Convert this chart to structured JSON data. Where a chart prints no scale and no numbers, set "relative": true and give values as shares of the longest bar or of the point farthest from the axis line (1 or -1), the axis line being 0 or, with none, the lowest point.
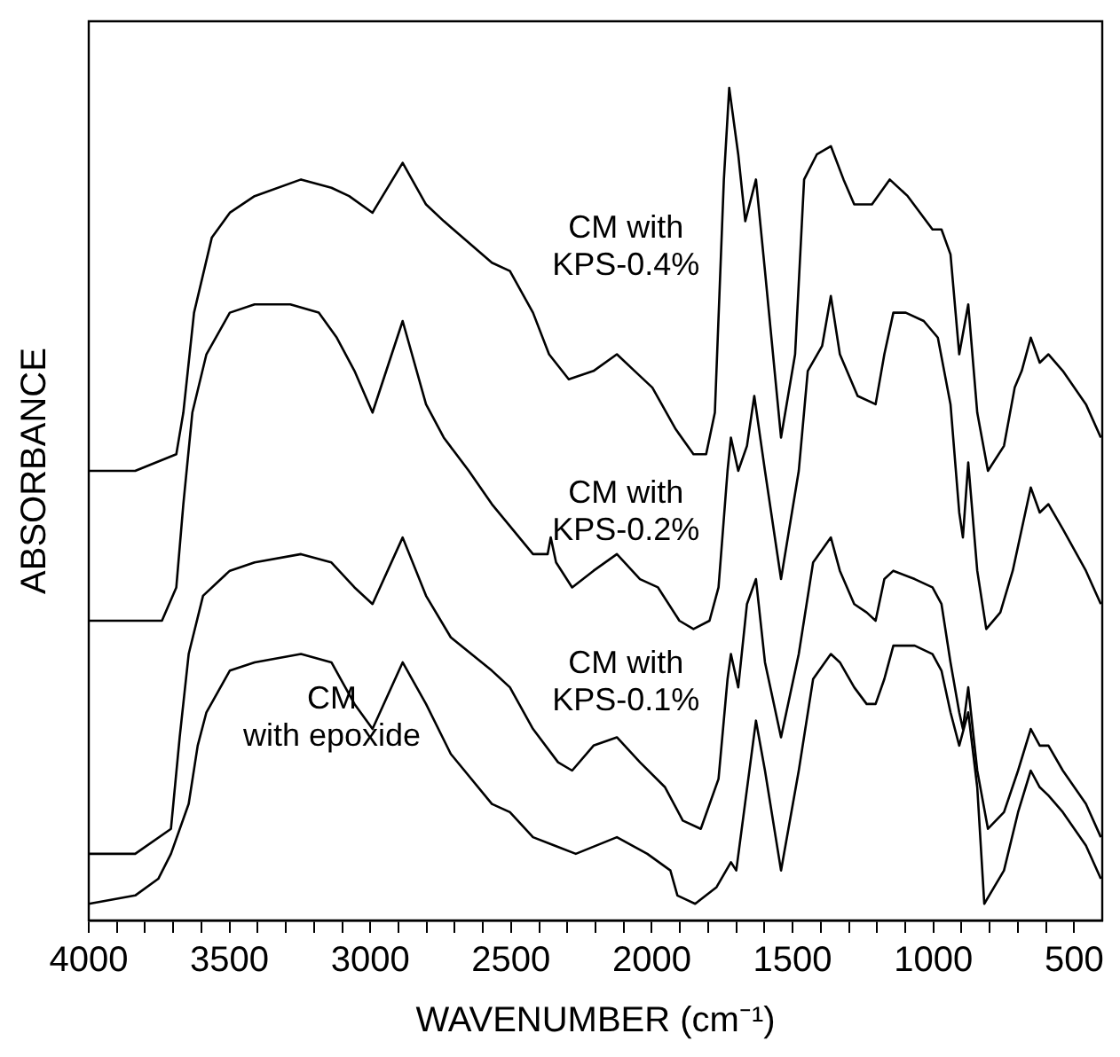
{
  "chart_data": {
    "type": "line",
    "relative": true,
    "marker": "none",
    "xlabel": "WAVENUMBER (cm⁻¹)",
    "ylabel": "ABSORBANCE",
    "xlim": [
      4000,
      400
    ],
    "xticks": [
      4000,
      {
        "value": 3900,
        "label": null
      },
      {
        "value": 3800,
        "label": null
      },
      {
        "value": 3700,
        "label": null
      },
      {
        "value": 3600,
        "label": null
      },
      3500,
      {
        "value": 3400,
        "label": null
      },
      {
        "value": 3300,
        "label": null
      },
      {
        "value": 3200,
        "label": null
      },
      {
        "value": 3100,
        "label": null
      },
      3000,
      {
        "value": 2900,
        "label": null
      },
      {
        "value": 2800,
        "label": null
      },
      {
        "value": 2700,
        "label": null
      },
      {
        "value": 2600,
        "label": null
      },
      2500,
      {
        "value": 2400,
        "label": null
      },
      {
        "value": 2300,
        "label": null
      },
      {
        "value": 2200,
        "label": null
      },
      {
        "value": 2100,
        "label": null
      },
      2000,
      {
        "value": 1900,
        "label": null
      },
      {
        "value": 1800,
        "label": null
      },
      {
        "value": 1700,
        "label": null
      },
      {
        "value": 1600,
        "label": null
      },
      1500,
      {
        "value": 1400,
        "label": null
      },
      {
        "value": 1300,
        "label": null
      },
      {
        "value": 1200,
        "label": null
      },
      {
        "value": 1100,
        "label": null
      },
      1000,
      {
        "value": 900,
        "label": null
      },
      {
        "value": 800,
        "label": null
      },
      {
        "value": 700,
        "label": null
      },
      {
        "value": 600,
        "label": null
      },
      500
    ],
    "series": [
      {
        "name": "CM with\nKPS-0.4%",
        "color": "#000000",
        "x": [
          4000,
          3835,
          3689,
          3664,
          3626,
          3563,
          3499,
          3411,
          3246,
          3138,
          3075,
          2992,
          2885,
          2802,
          2739,
          2568,
          2504,
          2422,
          2365,
          2295,
          2207,
          2124,
          2061,
          1998,
          1915,
          1852,
          1807,
          1776,
          1744,
          1725,
          1693,
          1668,
          1630,
          1598,
          1541,
          1491,
          1459,
          1414,
          1364,
          1319,
          1281,
          1218,
          1155,
          1091,
          1003,
          971,
          939,
          908,
          876,
          844,
          806,
          749,
          711,
          686,
          654,
          622,
          591,
          540,
          458,
          405
        ],
        "values": [
          0.54,
          0.54,
          0.56,
          0.61,
          0.73,
          0.82,
          0.85,
          0.87,
          0.89,
          0.88,
          0.87,
          0.85,
          0.91,
          0.86,
          0.84,
          0.79,
          0.78,
          0.73,
          0.68,
          0.65,
          0.66,
          0.68,
          0.66,
          0.64,
          0.59,
          0.56,
          0.56,
          0.61,
          0.89,
          1.0,
          0.92,
          0.84,
          0.89,
          0.78,
          0.58,
          0.68,
          0.89,
          0.92,
          0.93,
          0.89,
          0.86,
          0.86,
          0.89,
          0.87,
          0.83,
          0.83,
          0.8,
          0.68,
          0.74,
          0.61,
          0.54,
          0.57,
          0.64,
          0.66,
          0.7,
          0.67,
          0.68,
          0.66,
          0.62,
          0.58
        ]
      },
      {
        "name": "CM with\nKPS-0.2%",
        "color": "#000000",
        "x": [
          4000,
          3740,
          3689,
          3664,
          3632,
          3582,
          3499,
          3411,
          3284,
          3183,
          3119,
          3056,
          2992,
          2885,
          2802,
          2739,
          2650,
          2568,
          2422,
          2370,
          2359,
          2340,
          2283,
          2207,
          2124,
          2042,
          1978,
          1902,
          1852,
          1795,
          1763,
          1731,
          1719,
          1693,
          1662,
          1636,
          1598,
          1541,
          1478,
          1446,
          1395,
          1364,
          1332,
          1269,
          1205,
          1174,
          1142,
          1098,
          1034,
          984,
          939,
          908,
          895,
          876,
          844,
          812,
          762,
          718,
          686,
          654,
          622,
          591,
          540,
          458,
          405
        ],
        "values": [
          0.36,
          0.36,
          0.4,
          0.5,
          0.61,
          0.68,
          0.73,
          0.74,
          0.74,
          0.73,
          0.7,
          0.66,
          0.61,
          0.72,
          0.62,
          0.58,
          0.54,
          0.5,
          0.44,
          0.44,
          0.46,
          0.43,
          0.4,
          0.42,
          0.44,
          0.41,
          0.4,
          0.36,
          0.35,
          0.36,
          0.4,
          0.54,
          0.58,
          0.54,
          0.57,
          0.63,
          0.54,
          0.41,
          0.54,
          0.66,
          0.69,
          0.75,
          0.68,
          0.63,
          0.62,
          0.68,
          0.73,
          0.73,
          0.72,
          0.7,
          0.62,
          0.49,
          0.46,
          0.55,
          0.42,
          0.35,
          0.37,
          0.42,
          0.47,
          0.52,
          0.49,
          0.5,
          0.47,
          0.42,
          0.38
        ]
      },
      {
        "name": "CM with\nKPS-0.1%",
        "color": "#000000",
        "x": [
          4000,
          3835,
          3708,
          3677,
          3645,
          3594,
          3499,
          3411,
          3246,
          3138,
          3056,
          2992,
          2885,
          2802,
          2714,
          2568,
          2504,
          2422,
          2333,
          2283,
          2207,
          2124,
          2042,
          1953,
          1890,
          1826,
          1763,
          1731,
          1719,
          1693,
          1662,
          1630,
          1598,
          1541,
          1478,
          1427,
          1364,
          1332,
          1281,
          1237,
          1205,
          1174,
          1142,
          1066,
          1003,
          971,
          939,
          908,
          895,
          876,
          844,
          806,
          749,
          699,
          654,
          622,
          591,
          540,
          458,
          405
        ],
        "values": [
          0.08,
          0.08,
          0.11,
          0.22,
          0.32,
          0.39,
          0.42,
          0.43,
          0.44,
          0.43,
          0.4,
          0.38,
          0.46,
          0.39,
          0.34,
          0.3,
          0.28,
          0.23,
          0.19,
          0.18,
          0.21,
          0.22,
          0.19,
          0.16,
          0.12,
          0.11,
          0.17,
          0.29,
          0.32,
          0.28,
          0.38,
          0.41,
          0.31,
          0.22,
          0.32,
          0.43,
          0.46,
          0.42,
          0.38,
          0.37,
          0.36,
          0.41,
          0.42,
          0.41,
          0.4,
          0.38,
          0.31,
          0.25,
          0.23,
          0.28,
          0.18,
          0.11,
          0.13,
          0.18,
          0.23,
          0.21,
          0.21,
          0.18,
          0.14,
          0.1
        ]
      },
      {
        "name": "CM\nwith epoxide",
        "color": "#000000",
        "x": [
          4000,
          3835,
          3753,
          3708,
          3645,
          3613,
          3582,
          3499,
          3411,
          3246,
          3138,
          3056,
          2992,
          2885,
          2802,
          2714,
          2568,
          2504,
          2422,
          2346,
          2270,
          2124,
          2016,
          1934,
          1909,
          1846,
          1770,
          1719,
          1700,
          1630,
          1598,
          1541,
          1478,
          1427,
          1364,
          1332,
          1281,
          1237,
          1205,
          1174,
          1142,
          1066,
          1003,
          971,
          939,
          908,
          876,
          844,
          819,
          749,
          699,
          654,
          622,
          591,
          540,
          458,
          405
        ],
        "values": [
          0.02,
          0.03,
          0.05,
          0.08,
          0.14,
          0.21,
          0.25,
          0.3,
          0.31,
          0.32,
          0.31,
          0.26,
          0.23,
          0.31,
          0.26,
          0.2,
          0.14,
          0.13,
          0.1,
          0.09,
          0.08,
          0.1,
          0.08,
          0.06,
          0.03,
          0.02,
          0.04,
          0.07,
          0.06,
          0.24,
          0.18,
          0.06,
          0.18,
          0.29,
          0.32,
          0.31,
          0.28,
          0.26,
          0.26,
          0.29,
          0.33,
          0.33,
          0.32,
          0.3,
          0.25,
          0.21,
          0.25,
          0.16,
          0.02,
          0.06,
          0.13,
          0.18,
          0.16,
          0.15,
          0.13,
          0.09,
          0.05
        ]
      }
    ]
  }
}
